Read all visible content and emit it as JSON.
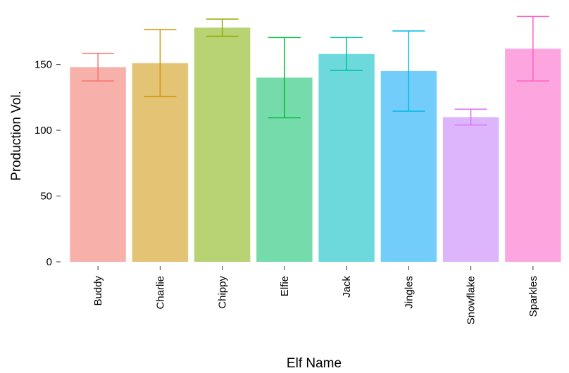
{
  "chart_data": {
    "type": "bar",
    "x_label": "Elf Name",
    "y_label": "Production Vol.",
    "categories": [
      "Buddy",
      "Charlie",
      "Chippy",
      "Elfie",
      "Jack",
      "Jingles",
      "Snowflake",
      "Sparkles"
    ],
    "values": [
      148,
      151,
      178,
      140,
      158,
      145,
      110,
      162
    ],
    "errors": [
      10.5,
      25.5,
      6.5,
      30.5,
      12.5,
      30.5,
      6,
      24.5
    ],
    "colors": [
      "#f8b0ab",
      "#e3c474",
      "#b7d373",
      "#75dbaa",
      "#6dd9dc",
      "#73cdfb",
      "#ddb5fd",
      "#fda5df"
    ],
    "error_colors": [
      "#f8766d",
      "#d39200",
      "#93aa00",
      "#00ba38",
      "#00c19f",
      "#00b9e3",
      "#db72fb",
      "#ff61c3"
    ],
    "ylim": [
      0,
      191
    ],
    "yticks": [
      0,
      50,
      100,
      150
    ],
    "grid": false
  }
}
